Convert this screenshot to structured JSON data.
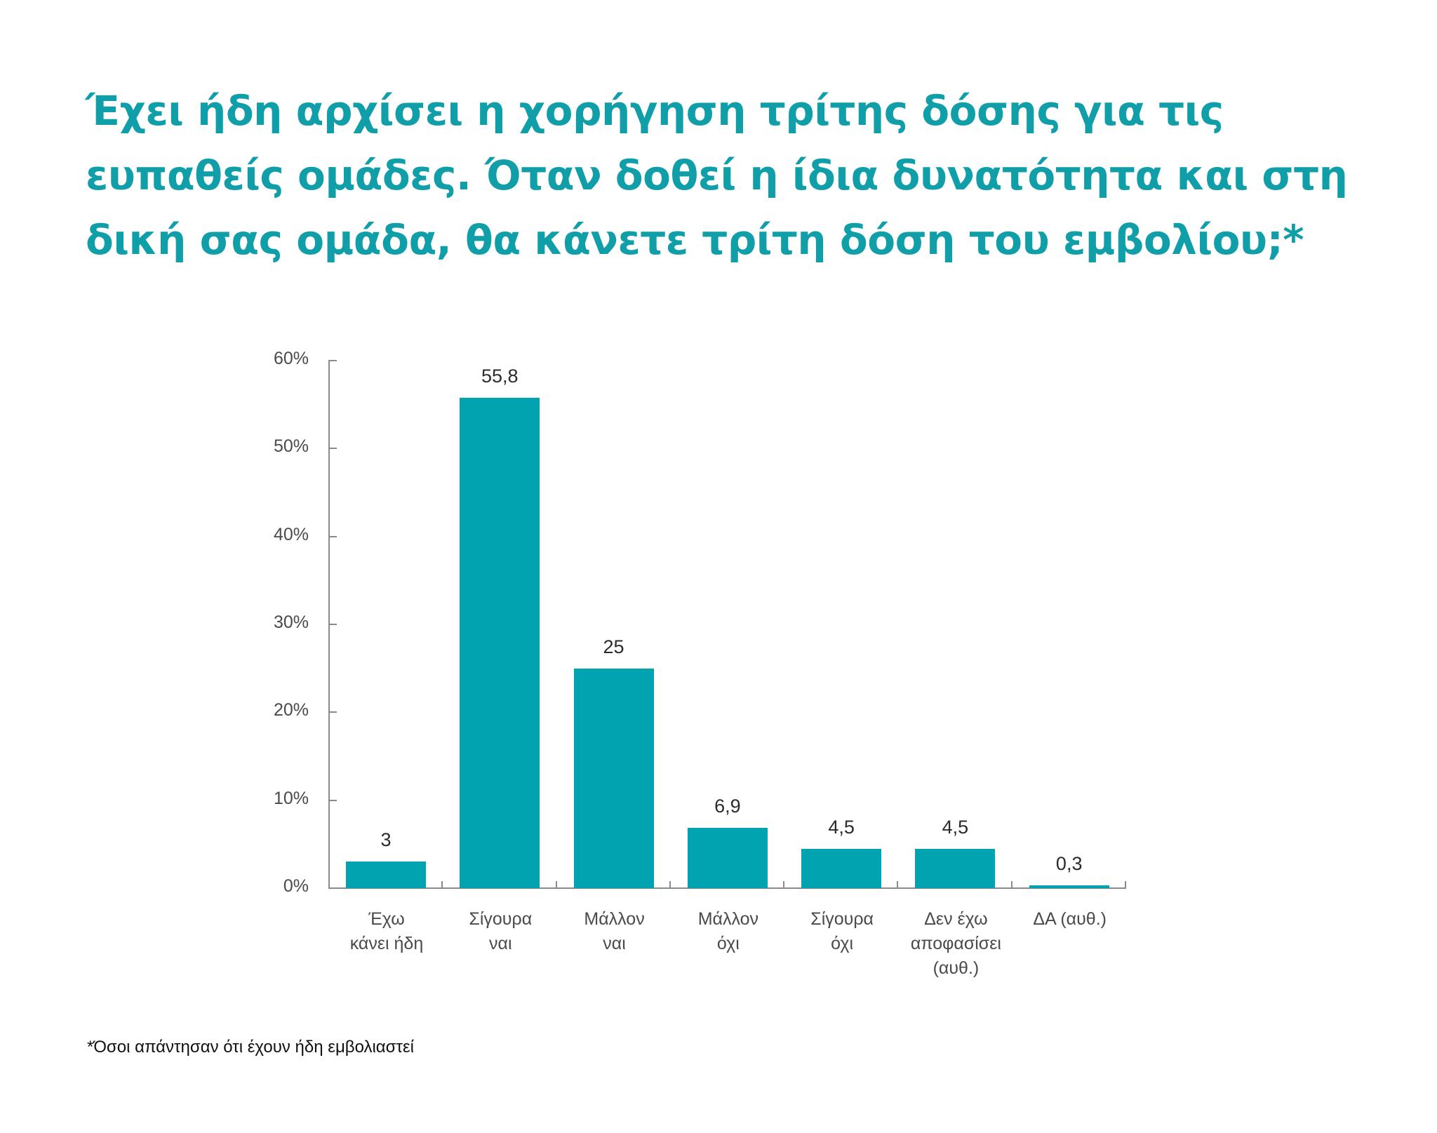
{
  "title": "Έχει ήδη αρχίσει η χορήγηση τρίτης δόσης για τις ευπαθείς ομάδες. Όταν δοθεί η ίδια δυνατότητα και στη δική σας ομάδα, θα κάνετε τρίτη δόση του εμβολίου;*",
  "footnote": "*Όσοι απάντησαν ότι έχουν ήδη εμβολιαστεί",
  "colors": {
    "bar": "#00a3af",
    "title": "#109fa8",
    "axis": "#8a8a8a"
  },
  "chart_data": {
    "type": "bar",
    "title": "Έχει ήδη αρχίσει η χορήγηση τρίτης δόσης για τις ευπαθείς ομάδες. Όταν δοθεί η ίδια δυνατότητα και στη δική σας ομάδα, θα κάνετε τρίτη δόση του εμβολίου;*",
    "xlabel": "",
    "ylabel": "",
    "ylim": [
      0,
      60
    ],
    "yticks": [
      "0%",
      "10%",
      "20%",
      "30%",
      "40%",
      "50%",
      "60%"
    ],
    "grid": false,
    "legend": null,
    "categories": [
      "Έχω\nκάνει ήδη",
      "Σίγουρα\nναι",
      "Μάλλον\nναι",
      "Μάλλον\nόχι",
      "Σίγουρα\nόχι",
      "Δεν έχω\nαποφασίσει\n(αυθ.)",
      "ΔΑ (αυθ.)"
    ],
    "values": [
      3,
      55.8,
      25,
      6.9,
      4.5,
      4.5,
      0.3
    ],
    "value_labels": [
      "3",
      "55,8",
      "25",
      "6,9",
      "4,5",
      "4,5",
      "0,3"
    ],
    "annotations": [
      "*Όσοι απάντησαν ότι έχουν ήδη εμβολιαστεί"
    ]
  }
}
